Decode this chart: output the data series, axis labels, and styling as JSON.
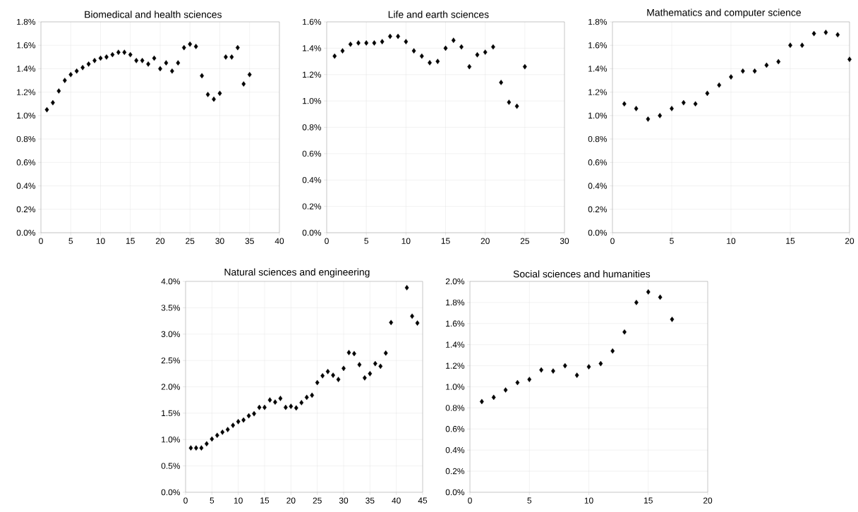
{
  "chart_data": [
    {
      "type": "scatter",
      "title": "Biomedical and health sciences",
      "color": "#000000",
      "marker": "diamond",
      "grid": true,
      "x": [
        1,
        2,
        3,
        4,
        5,
        6,
        7,
        8,
        9,
        10,
        11,
        12,
        13,
        14,
        15,
        16,
        17,
        18,
        19,
        20,
        21,
        22,
        23,
        24,
        25,
        26,
        27,
        28,
        29,
        30,
        31,
        32,
        33,
        34,
        35
      ],
      "values": [
        1.05,
        1.11,
        1.21,
        1.3,
        1.35,
        1.38,
        1.41,
        1.44,
        1.47,
        1.49,
        1.5,
        1.52,
        1.54,
        1.54,
        1.52,
        1.47,
        1.47,
        1.44,
        1.49,
        1.4,
        1.45,
        1.38,
        1.45,
        1.58,
        1.61,
        1.59,
        1.34,
        1.18,
        1.14,
        1.19,
        1.5,
        1.5,
        1.58,
        1.27,
        1.35
      ],
      "xlim": [
        0,
        40
      ],
      "xticks": [
        0,
        5,
        10,
        15,
        20,
        25,
        30,
        35,
        40
      ],
      "ylim": [
        0,
        1.8
      ],
      "yticks": [
        {
          "value": 0,
          "label": "0.0%"
        },
        {
          "value": 0.2,
          "label": "0.2%"
        },
        {
          "value": 0.4,
          "label": "0.4%"
        },
        {
          "value": 0.6,
          "label": "0.6%"
        },
        {
          "value": 0.8,
          "label": "0.8%"
        },
        {
          "value": 1.0,
          "label": "1.0%"
        },
        {
          "value": 1.2,
          "label": "1.2%"
        },
        {
          "value": 1.4,
          "label": "1.4%"
        },
        {
          "value": 1.6,
          "label": "1.6%"
        },
        {
          "value": 1.8,
          "label": "1.8%"
        }
      ]
    },
    {
      "type": "scatter",
      "title": "Life and earth sciences",
      "color": "#000000",
      "marker": "diamond",
      "grid": true,
      "x": [
        1,
        2,
        3,
        4,
        5,
        6,
        7,
        8,
        9,
        10,
        11,
        12,
        13,
        14,
        15,
        16,
        17,
        18,
        19,
        20,
        21,
        22,
        23,
        24,
        25
      ],
      "values": [
        1.34,
        1.38,
        1.43,
        1.44,
        1.44,
        1.44,
        1.45,
        1.49,
        1.49,
        1.45,
        1.38,
        1.34,
        1.29,
        1.3,
        1.4,
        1.46,
        1.41,
        1.26,
        1.35,
        1.37,
        1.41,
        1.14,
        0.99,
        0.96,
        1.26
      ],
      "xlim": [
        0,
        30
      ],
      "xticks": [
        0,
        5,
        10,
        15,
        20,
        25,
        30
      ],
      "ylim": [
        0,
        1.6
      ],
      "yticks": [
        {
          "value": 0,
          "label": "0.0%"
        },
        {
          "value": 0.2,
          "label": "0.2%"
        },
        {
          "value": 0.4,
          "label": "0.4%"
        },
        {
          "value": 0.6,
          "label": "0.6%"
        },
        {
          "value": 0.8,
          "label": "0.8%"
        },
        {
          "value": 1.0,
          "label": "1.0%"
        },
        {
          "value": 1.2,
          "label": "1.2%"
        },
        {
          "value": 1.4,
          "label": "1.4%"
        },
        {
          "value": 1.6,
          "label": "1.6%"
        }
      ]
    },
    {
      "type": "scatter",
      "title": "Mathematics and computer science",
      "color": "#000000",
      "marker": "diamond",
      "grid": true,
      "x": [
        1,
        2,
        3,
        4,
        5,
        6,
        7,
        8,
        9,
        10,
        11,
        12,
        13,
        14,
        15,
        16,
        17,
        18,
        19,
        20
      ],
      "values": [
        1.1,
        1.06,
        0.97,
        1.0,
        1.06,
        1.11,
        1.1,
        1.19,
        1.26,
        1.33,
        1.38,
        1.38,
        1.43,
        1.46,
        1.6,
        1.6,
        1.7,
        1.71,
        1.69,
        1.48
      ],
      "xlim": [
        0,
        20
      ],
      "xticks": [
        0,
        5,
        10,
        15,
        20
      ],
      "ylim": [
        0,
        1.8
      ],
      "yticks": [
        {
          "value": 0,
          "label": "0.0%"
        },
        {
          "value": 0.2,
          "label": "0.2%"
        },
        {
          "value": 0.4,
          "label": "0.4%"
        },
        {
          "value": 0.6,
          "label": "0.6%"
        },
        {
          "value": 0.8,
          "label": "0.8%"
        },
        {
          "value": 1.0,
          "label": "1.0%"
        },
        {
          "value": 1.2,
          "label": "1.2%"
        },
        {
          "value": 1.4,
          "label": "1.4%"
        },
        {
          "value": 1.6,
          "label": "1.6%"
        },
        {
          "value": 1.8,
          "label": "1.8%"
        }
      ]
    },
    {
      "type": "scatter",
      "title": "Natural sciences and engineering",
      "color": "#000000",
      "marker": "diamond",
      "grid": true,
      "x": [
        1,
        2,
        3,
        4,
        5,
        6,
        7,
        8,
        9,
        10,
        11,
        12,
        13,
        14,
        15,
        16,
        17,
        18,
        19,
        20,
        21,
        22,
        23,
        24,
        25,
        26,
        27,
        28,
        29,
        30,
        31,
        32,
        33,
        34,
        35,
        36,
        37,
        38,
        39,
        42,
        43,
        44
      ],
      "values": [
        0.84,
        0.84,
        0.84,
        0.92,
        1.01,
        1.08,
        1.14,
        1.19,
        1.27,
        1.34,
        1.37,
        1.45,
        1.49,
        1.61,
        1.61,
        1.75,
        1.71,
        1.78,
        1.61,
        1.63,
        1.6,
        1.7,
        1.8,
        1.84,
        2.08,
        2.21,
        2.29,
        2.22,
        2.14,
        2.35,
        2.65,
        2.63,
        2.42,
        2.17,
        2.25,
        2.44,
        2.39,
        2.64,
        3.22,
        3.88,
        3.34,
        3.21
      ],
      "xlim": [
        0,
        45
      ],
      "xticks": [
        0,
        5,
        10,
        15,
        20,
        25,
        30,
        35,
        40,
        45
      ],
      "ylim": [
        0,
        4.0
      ],
      "yticks": [
        {
          "value": 0,
          "label": "0.0%"
        },
        {
          "value": 0.5,
          "label": "0.5%"
        },
        {
          "value": 1.0,
          "label": "1.0%"
        },
        {
          "value": 1.5,
          "label": "1.5%"
        },
        {
          "value": 2.0,
          "label": "2.0%"
        },
        {
          "value": 2.5,
          "label": "2.5%"
        },
        {
          "value": 3.0,
          "label": "3.0%"
        },
        {
          "value": 3.5,
          "label": "3.5%"
        },
        {
          "value": 4.0,
          "label": "4.0%"
        }
      ]
    },
    {
      "type": "scatter",
      "title": "Social sciences and humanities",
      "color": "#000000",
      "marker": "diamond",
      "grid": true,
      "x": [
        1,
        2,
        3,
        4,
        5,
        6,
        7,
        8,
        9,
        10,
        11,
        12,
        13,
        14,
        15,
        16,
        17
      ],
      "values": [
        0.86,
        0.9,
        0.97,
        1.04,
        1.07,
        1.16,
        1.15,
        1.2,
        1.11,
        1.19,
        1.22,
        1.34,
        1.52,
        1.8,
        1.9,
        1.85,
        1.64
      ],
      "xlim": [
        0,
        20
      ],
      "xticks": [
        0,
        5,
        10,
        15,
        20
      ],
      "ylim": [
        0,
        2.0
      ],
      "yticks": [
        {
          "value": 0,
          "label": "0.0%"
        },
        {
          "value": 0.2,
          "label": "0.2%"
        },
        {
          "value": 0.4,
          "label": "0.4%"
        },
        {
          "value": 0.6,
          "label": "0.6%"
        },
        {
          "value": 0.8,
          "label": "0.8%"
        },
        {
          "value": 1.0,
          "label": "1.0%"
        },
        {
          "value": 1.2,
          "label": "1.2%"
        },
        {
          "value": 1.4,
          "label": "1.4%"
        },
        {
          "value": 1.6,
          "label": "1.6%"
        },
        {
          "value": 1.8,
          "label": "1.8%"
        },
        {
          "value": 2.0,
          "label": "2.0%"
        }
      ]
    }
  ]
}
